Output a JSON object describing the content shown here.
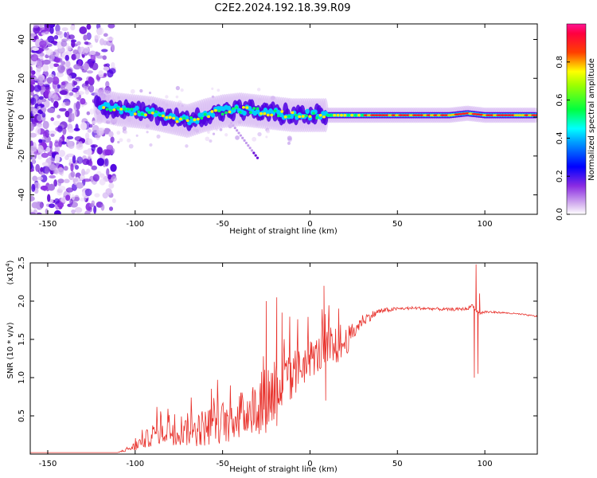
{
  "title": "C2E2.2024.192.18.39.R09",
  "chart_data": [
    {
      "type": "heatmap",
      "xlabel": "Height of straight line (km)",
      "ylabel": "Frequency (Hz)",
      "xlim": [
        -160,
        130
      ],
      "ylim": [
        -50,
        48
      ],
      "x_ticks": [
        -150,
        -100,
        -50,
        0,
        50,
        100
      ],
      "y_ticks": [
        -40,
        -20,
        0,
        20,
        40
      ],
      "colorbar": {
        "label": "Normalized spectral amplitude",
        "range": [
          0.0,
          1.0
        ],
        "ticks": [
          0.0,
          0.2,
          0.4,
          0.6,
          0.8
        ],
        "colormap": [
          "#ffffff",
          "#8a2be2",
          "#0000ff",
          "#00ffff",
          "#00ff00",
          "#ffff00",
          "#ff0000",
          "#ff1493"
        ]
      },
      "band": [
        {
          "x": -120,
          "f": 6
        },
        {
          "x": -110,
          "f": 4
        },
        {
          "x": -100,
          "f": 3
        },
        {
          "x": -90,
          "f": 2
        },
        {
          "x": -80,
          "f": 0
        },
        {
          "x": -70,
          "f": -2
        },
        {
          "x": -60,
          "f": 1
        },
        {
          "x": -50,
          "f": 3
        },
        {
          "x": -40,
          "f": 4
        },
        {
          "x": -30,
          "f": 3
        },
        {
          "x": -20,
          "f": 2
        },
        {
          "x": -10,
          "f": 1
        },
        {
          "x": 0,
          "f": 1
        },
        {
          "x": 20,
          "f": 1
        },
        {
          "x": 50,
          "f": 1
        },
        {
          "x": 80,
          "f": 1
        },
        {
          "x": 90,
          "f": 2
        },
        {
          "x": 100,
          "f": 1
        },
        {
          "x": 130,
          "f": 1
        }
      ],
      "noise_region": {
        "x_min": -160,
        "x_max": -112
      },
      "faint_trace": {
        "x_start": -45,
        "f_start": -3,
        "x_end": -30,
        "f_end": -21
      }
    },
    {
      "type": "line",
      "xlabel": "Height of straight line (km)",
      "ylabel": "SNR (10 * v/v)",
      "y_multiplier": "(x10",
      "y_multiplier_exp": "4",
      "y_multiplier_close": ")",
      "xlim": [
        -160,
        130
      ],
      "ylim": [
        0,
        2.5
      ],
      "x_ticks": [
        -150,
        -100,
        -50,
        0,
        50,
        100
      ],
      "y_ticks": [
        0.5,
        1.0,
        1.5,
        2.0,
        2.5
      ],
      "y_tick_labels": [
        "0.5",
        "1.0",
        "1.5",
        "2.0",
        "2.5"
      ],
      "series_color": "#e8302a",
      "envelope": {
        "x": [
          -160,
          -110,
          -100,
          -90,
          -80,
          -70,
          -60,
          -50,
          -40,
          -30,
          -25,
          -20,
          -15,
          -10,
          -5,
          0,
          5,
          10,
          15,
          20,
          25,
          30,
          40,
          50,
          60,
          70,
          80,
          90,
          93,
          95,
          97,
          100,
          110,
          120,
          130
        ],
        "y": [
          0.02,
          0.02,
          0.1,
          0.25,
          0.32,
          0.32,
          0.35,
          0.42,
          0.5,
          0.62,
          0.72,
          0.85,
          0.9,
          1.0,
          1.15,
          1.25,
          1.3,
          1.35,
          1.4,
          1.45,
          1.6,
          1.75,
          1.87,
          1.9,
          1.91,
          1.9,
          1.89,
          1.9,
          1.95,
          1.88,
          1.84,
          1.86,
          1.85,
          1.83,
          1.8
        ],
        "noise": [
          0.0,
          0.0,
          0.06,
          0.15,
          0.2,
          0.22,
          0.25,
          0.28,
          0.3,
          0.38,
          0.45,
          0.55,
          0.45,
          0.35,
          0.3,
          0.25,
          0.25,
          0.3,
          0.25,
          0.2,
          0.12,
          0.08,
          0.04,
          0.02,
          0.02,
          0.02,
          0.02,
          0.02,
          0.02,
          0.02,
          0.02,
          0.02,
          0.01,
          0.01,
          0.01
        ]
      },
      "spikes": [
        {
          "x": -25,
          "y": 2.0
        },
        {
          "x": -19,
          "y": 2.05
        },
        {
          "x": -16,
          "y": 1.85
        },
        {
          "x": 8,
          "y": 2.2
        },
        {
          "x": 9,
          "y": 0.7
        },
        {
          "x": 95,
          "y": 2.48
        },
        {
          "x": 96,
          "y": 1.05
        },
        {
          "x": 94,
          "y": 1.0
        },
        {
          "x": 97,
          "y": 2.1
        }
      ]
    }
  ]
}
